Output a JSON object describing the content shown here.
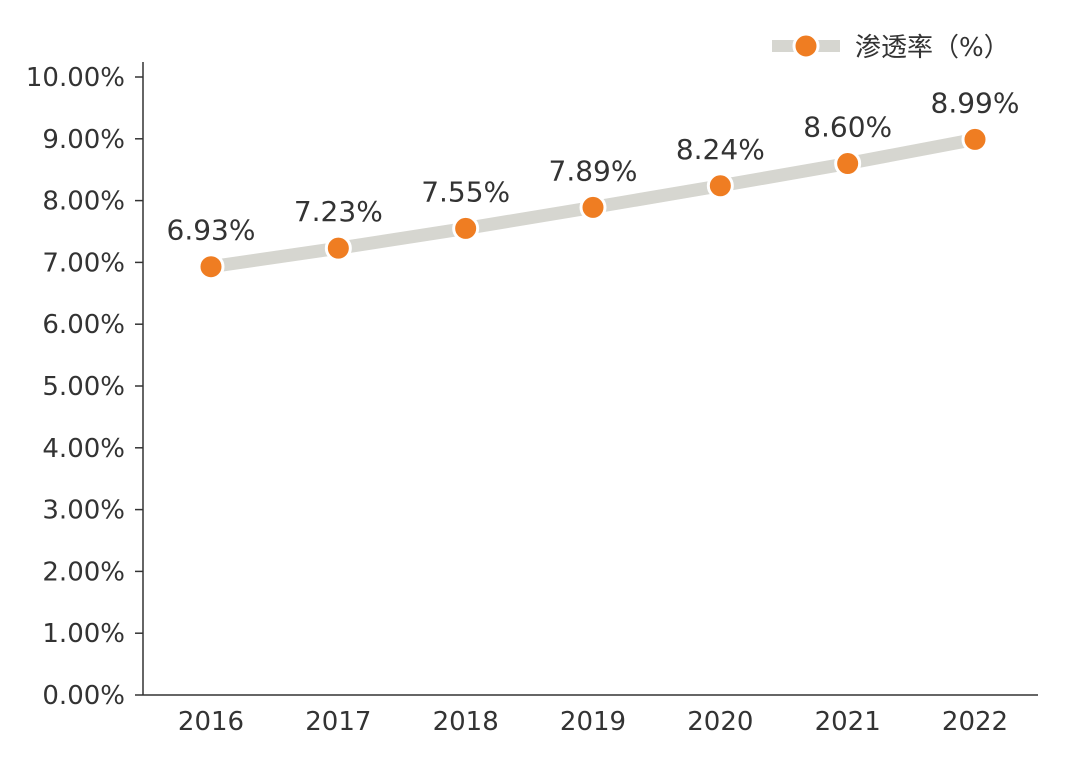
{
  "chart_data": {
    "type": "line",
    "categories": [
      "2016",
      "2017",
      "2018",
      "2019",
      "2020",
      "2021",
      "2022"
    ],
    "series": [
      {
        "name": "渗透率（%）",
        "values": [
          6.93,
          7.23,
          7.55,
          7.89,
          8.24,
          8.6,
          8.99
        ],
        "labels": [
          "6.93%",
          "7.23%",
          "7.55%",
          "7.89%",
          "8.24%",
          "8.60%",
          "8.99%"
        ]
      }
    ],
    "ylim": [
      0,
      10
    ],
    "yticks": [
      "0.00%",
      "1.00%",
      "2.00%",
      "3.00%",
      "4.00%",
      "5.00%",
      "6.00%",
      "7.00%",
      "8.00%",
      "9.00%",
      "10.00%"
    ],
    "grid": false,
    "legend_position": "top-right",
    "colors": {
      "line": "#d6d6d0",
      "marker": "#ef7d22",
      "marker_edge": "#ffffff",
      "axis": "#333333",
      "text": "#333333"
    }
  }
}
